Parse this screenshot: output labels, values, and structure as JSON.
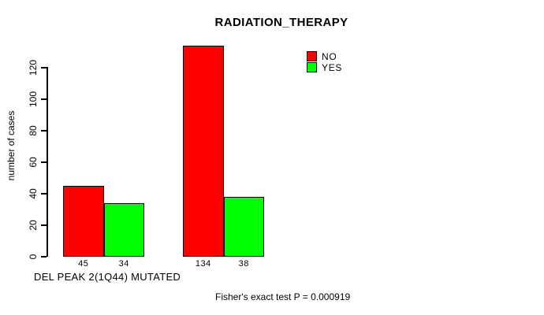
{
  "chart_data": {
    "type": "bar",
    "title": "RADIATION_THERAPY",
    "xlabel": "DEL PEAK 2(1Q44) MUTATED",
    "ylabel": "number of cases",
    "categories": [
      "",
      ""
    ],
    "series": [
      {
        "name": "NO",
        "color": "#ff0000",
        "values": [
          45,
          134
        ]
      },
      {
        "name": "YES",
        "color": "#00ff00",
        "values": [
          34,
          38
        ]
      }
    ],
    "bar_value_labels": [
      "45",
      "34",
      "134",
      "38"
    ],
    "yticks": [
      0,
      20,
      40,
      60,
      80,
      100,
      120
    ],
    "ylim": [
      0,
      120
    ],
    "grid": false,
    "legend_position": "top-right",
    "annotation": "Fisher's exact test P = 0.000919",
    "axis_color": "#000000",
    "background_color": "#ffffff"
  }
}
